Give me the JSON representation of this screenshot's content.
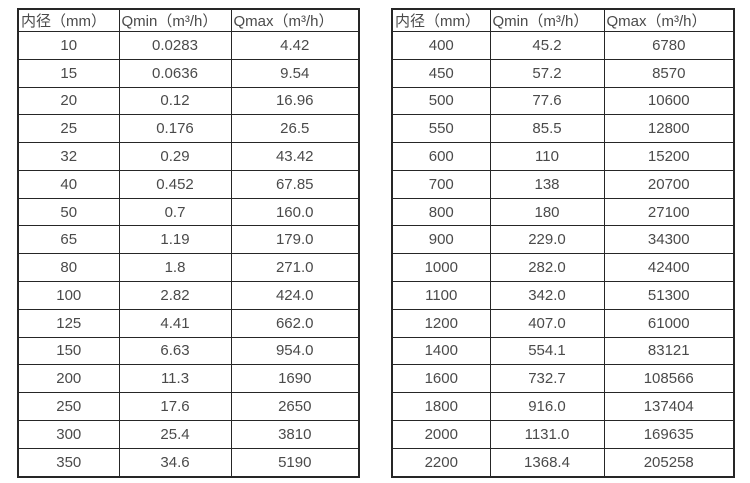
{
  "colors": {
    "background": "#ffffff",
    "border": "#262626",
    "text": "#4a4a4a"
  },
  "chart_data": [
    {
      "type": "table",
      "title": "",
      "columns": [
        "内径（mm）",
        "Qmin（m³/h）",
        "Qmax（m³/h）"
      ],
      "rows": [
        [
          "10",
          "0.0283",
          "4.42"
        ],
        [
          "15",
          "0.0636",
          "9.54"
        ],
        [
          "20",
          "0.12",
          "16.96"
        ],
        [
          "25",
          "0.176",
          "26.5"
        ],
        [
          "32",
          "0.29",
          "43.42"
        ],
        [
          "40",
          "0.452",
          "67.85"
        ],
        [
          "50",
          "0.7",
          "160.0"
        ],
        [
          "65",
          "1.19",
          "179.0"
        ],
        [
          "80",
          "1.8",
          "271.0"
        ],
        [
          "100",
          "2.82",
          "424.0"
        ],
        [
          "125",
          "4.41",
          "662.0"
        ],
        [
          "150",
          "6.63",
          "954.0"
        ],
        [
          "200",
          "11.3",
          "1690"
        ],
        [
          "250",
          "17.6",
          "2650"
        ],
        [
          "300",
          "25.4",
          "3810"
        ],
        [
          "350",
          "34.6",
          "5190"
        ]
      ]
    },
    {
      "type": "table",
      "title": "",
      "columns": [
        "内径（mm）",
        "Qmin（m³/h）",
        "Qmax（m³/h）"
      ],
      "rows": [
        [
          "400",
          "45.2",
          "6780"
        ],
        [
          "450",
          "57.2",
          "8570"
        ],
        [
          "500",
          "77.6",
          "10600"
        ],
        [
          "550",
          "85.5",
          "12800"
        ],
        [
          "600",
          "110",
          "15200"
        ],
        [
          "700",
          "138",
          "20700"
        ],
        [
          "800",
          "180",
          "27100"
        ],
        [
          "900",
          "229.0",
          "34300"
        ],
        [
          "1000",
          "282.0",
          "42400"
        ],
        [
          "1100",
          "342.0",
          "51300"
        ],
        [
          "1200",
          "407.0",
          "61000"
        ],
        [
          "1400",
          "554.1",
          "83121"
        ],
        [
          "1600",
          "732.7",
          "108566"
        ],
        [
          "1800",
          "916.0",
          "137404"
        ],
        [
          "2000",
          "1131.0",
          "169635"
        ],
        [
          "2200",
          "1368.4",
          "205258"
        ]
      ]
    }
  ]
}
